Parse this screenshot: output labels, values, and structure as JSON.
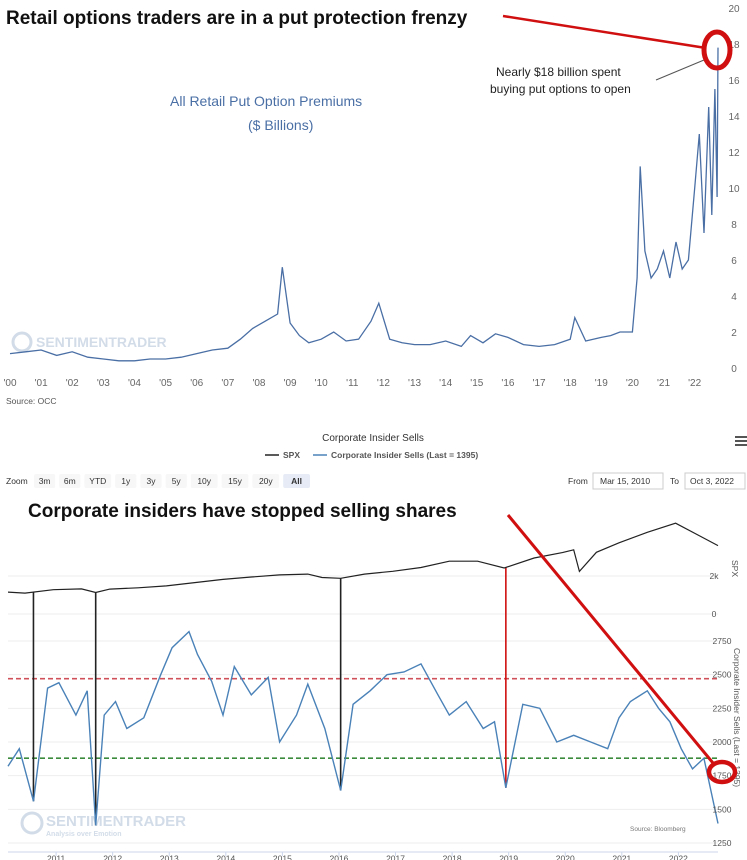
{
  "colors": {
    "retail_line": "#4a6fa5",
    "spx_line": "#222222",
    "insider_line": "#4a82b8",
    "highlight_red": "#d01010",
    "dashed_red": "#d0505a",
    "dashed_green": "#3c8a3c"
  },
  "top": {
    "headline": "Retail options traders are in a put protection frenzy",
    "chart_label_line1": "All Retail Put Option Premiums",
    "chart_label_line2": "($ Billions)",
    "annotation_line1": "Nearly $18 billion spent",
    "annotation_line2": "buying put options to open",
    "source": "Source: OCC",
    "watermark": "SENTIMENTRADER"
  },
  "bottom": {
    "title": "Corporate Insider Sells",
    "legend_spx": "SPX",
    "legend_insider": "Corporate Insider Sells (Last = 1395)",
    "zoom_label": "Zoom",
    "zoom_buttons": [
      "3m",
      "6m",
      "YTD",
      "1y",
      "3y",
      "5y",
      "10y",
      "15y",
      "20y",
      "All"
    ],
    "from_label": "From",
    "from_value": "Mar 15, 2010",
    "to_label": "To",
    "to_value": "Oct 3, 2022",
    "menu_icon": "hamburger-menu-icon",
    "headline": "Corporate insiders have stopped selling shares",
    "spx_axis_title": "SPX",
    "insider_axis_title": "Corporate Insider Sells (Last = 1395)",
    "source": "Source: Bloomberg",
    "watermark": "SENTIMENTRADER",
    "watermark_tagline": "Analysis over Emotion"
  },
  "chart_data": [
    {
      "type": "line",
      "title": "All Retail Put Option Premiums",
      "subtitle": "($ Billions)",
      "xlabel": "",
      "ylabel": "",
      "x_ticks": [
        "'00",
        "'01",
        "'02",
        "'03",
        "'04",
        "'05",
        "'06",
        "'07",
        "'08",
        "'09",
        "'10",
        "'11",
        "'12",
        "'13",
        "'14",
        "'15",
        "'16",
        "'17",
        "'18",
        "'19",
        "'20",
        "'21",
        "'22"
      ],
      "y_ticks": [
        0,
        2,
        4,
        6,
        8,
        10,
        12,
        14,
        16,
        18,
        20
      ],
      "ylim": [
        0,
        20
      ],
      "grid": false,
      "series": [
        {
          "values_note_free": true,
          "x": [
            2000.0,
            2000.5,
            2001.0,
            2001.5,
            2002.0,
            2002.5,
            2003.0,
            2003.5,
            2004.0,
            2004.5,
            2005.0,
            2005.5,
            2006.0,
            2006.5,
            2007.0,
            2007.4,
            2007.8,
            2008.2,
            2008.6,
            2008.75,
            2009.0,
            2009.3,
            2009.6,
            2010.0,
            2010.4,
            2010.8,
            2011.2,
            2011.6,
            2011.85,
            2012.2,
            2012.6,
            2013.0,
            2013.5,
            2014.0,
            2014.5,
            2014.8,
            2015.2,
            2015.6,
            2016.0,
            2016.5,
            2017.0,
            2017.5,
            2018.0,
            2018.15,
            2018.5,
            2019.0,
            2019.3,
            2019.6,
            2020.0,
            2020.15,
            2020.25,
            2020.4,
            2020.6,
            2020.8,
            2021.0,
            2021.2,
            2021.4,
            2021.6,
            2021.8,
            2022.0,
            2022.15,
            2022.3,
            2022.45,
            2022.55,
            2022.65,
            2022.72,
            2022.75
          ],
          "y": [
            0.8,
            0.9,
            1.0,
            0.7,
            0.9,
            0.6,
            0.5,
            0.4,
            0.4,
            0.5,
            0.5,
            0.6,
            0.8,
            1.0,
            1.1,
            1.6,
            2.2,
            2.6,
            3.0,
            5.6,
            2.5,
            1.8,
            1.4,
            1.6,
            2.0,
            1.5,
            1.6,
            2.6,
            3.6,
            1.6,
            1.4,
            1.3,
            1.3,
            1.5,
            1.2,
            1.8,
            1.4,
            1.9,
            1.7,
            1.3,
            1.2,
            1.3,
            1.6,
            2.8,
            1.5,
            1.7,
            1.8,
            2.0,
            2.0,
            5.0,
            11.2,
            6.5,
            5.0,
            5.5,
            6.5,
            5.0,
            7.0,
            5.5,
            6.0,
            10.0,
            13.0,
            7.5,
            14.5,
            8.5,
            15.5,
            9.5,
            17.8
          ]
        }
      ],
      "annotation": "Nearly $18 billion spent buying put options to open"
    },
    {
      "type": "line",
      "title": "Corporate Insider Sells",
      "xlabel": "",
      "x_ticks": [
        "2011",
        "2012",
        "2013",
        "2014",
        "2015",
        "2016",
        "2017",
        "2018",
        "2019",
        "2020",
        "2021",
        "2022"
      ],
      "y_axes": [
        {
          "name": "SPX",
          "ticks": [
            "0",
            "2k"
          ],
          "ylim": [
            0,
            5000
          ]
        },
        {
          "name": "Corporate Insider Sells (Last = 1395)",
          "ticks": [
            1250,
            1500,
            1750,
            2000,
            2250,
            2500,
            2750
          ],
          "ylim": [
            1250,
            2750
          ]
        }
      ],
      "reference_lines": [
        {
          "axis": "Corporate Insider Sells (Last = 1395)",
          "value": 2470,
          "color": "#d0505a",
          "style": "dashed"
        },
        {
          "axis": "Corporate Insider Sells (Last = 1395)",
          "value": 1880,
          "color": "#3c8a3c",
          "style": "dashed"
        }
      ],
      "vertical_markers": [
        {
          "x": 2010.65,
          "color": "#222222"
        },
        {
          "x": 2011.75,
          "color": "#222222"
        },
        {
          "x": 2016.08,
          "color": "#222222"
        },
        {
          "x": 2019.0,
          "color": "#d01010"
        }
      ],
      "series": [
        {
          "name": "SPX",
          "x": [
            2010.2,
            2010.5,
            2011.0,
            2011.5,
            2011.75,
            2012.0,
            2012.5,
            2013.0,
            2013.5,
            2014.0,
            2014.5,
            2015.0,
            2015.5,
            2015.75,
            2016.08,
            2016.5,
            2017.0,
            2017.5,
            2018.0,
            2018.5,
            2018.97,
            2019.5,
            2020.0,
            2020.2,
            2020.3,
            2020.6,
            2021.0,
            2021.5,
            2022.0,
            2022.4,
            2022.75
          ],
          "y": [
            1150,
            1100,
            1280,
            1320,
            1130,
            1310,
            1380,
            1480,
            1650,
            1820,
            1950,
            2060,
            2100,
            1920,
            1880,
            2100,
            2250,
            2450,
            2780,
            2780,
            2420,
            2950,
            3230,
            3380,
            2240,
            3250,
            3750,
            4300,
            4780,
            4150,
            3600
          ]
        },
        {
          "name": "Corporate Insider Sells",
          "x": [
            2010.2,
            2010.4,
            2010.65,
            2010.9,
            2011.1,
            2011.4,
            2011.6,
            2011.75,
            2011.9,
            2012.1,
            2012.3,
            2012.6,
            2012.9,
            2013.1,
            2013.4,
            2013.55,
            2013.8,
            2014.0,
            2014.2,
            2014.5,
            2014.8,
            2015.0,
            2015.3,
            2015.5,
            2015.8,
            2016.08,
            2016.3,
            2016.6,
            2016.9,
            2017.2,
            2017.5,
            2017.8,
            2018.0,
            2018.3,
            2018.6,
            2018.8,
            2019.0,
            2019.3,
            2019.6,
            2019.9,
            2020.2,
            2020.5,
            2020.8,
            2021.0,
            2021.2,
            2021.5,
            2021.7,
            2021.9,
            2022.1,
            2022.3,
            2022.5,
            2022.75
          ],
          "y": [
            1820,
            1950,
            1560,
            2400,
            2440,
            2200,
            2380,
            1380,
            2200,
            2300,
            2100,
            2180,
            2500,
            2700,
            2820,
            2650,
            2450,
            2200,
            2560,
            2350,
            2480,
            2000,
            2200,
            2430,
            2100,
            1640,
            2280,
            2380,
            2500,
            2520,
            2580,
            2350,
            2200,
            2300,
            2100,
            2150,
            1660,
            2280,
            2250,
            2000,
            2050,
            2000,
            1950,
            2180,
            2300,
            2380,
            2250,
            2150,
            1950,
            1800,
            1880,
            1395
          ]
        }
      ]
    }
  ]
}
